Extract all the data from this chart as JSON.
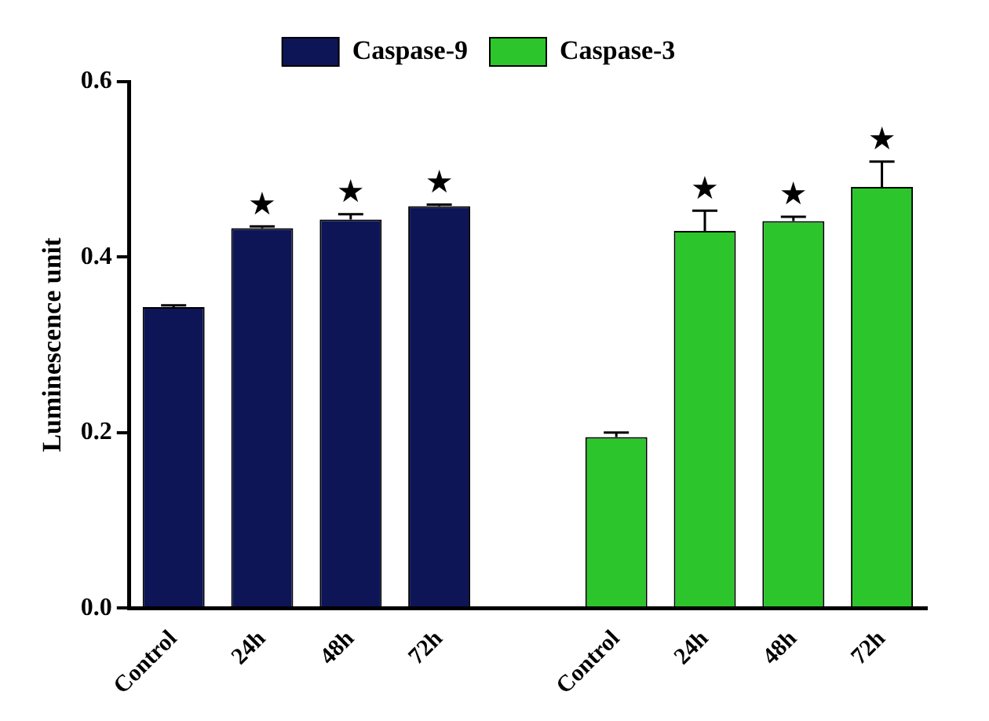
{
  "chart_data": {
    "type": "bar",
    "ylabel": "Luminescence unit",
    "categories": [
      "Control",
      "24h",
      "48h",
      "72h",
      null,
      "Control",
      "24h",
      "48h",
      "72h"
    ],
    "series": [
      {
        "name": "Caspase-9",
        "color": "#0d1557",
        "values": [
          0.343,
          0.433,
          0.443,
          0.458,
          null,
          null,
          null,
          null,
          null
        ],
        "errors": [
          0.002,
          0.002,
          0.006,
          0.002,
          null,
          null,
          null,
          null,
          null
        ],
        "value_labels": [
          null,
          "★",
          "★",
          "★",
          null,
          null,
          null,
          null,
          null
        ]
      },
      {
        "name": "Caspase-3",
        "color": "#2cc52c",
        "values": [
          null,
          null,
          null,
          null,
          null,
          0.195,
          0.43,
          0.441,
          0.48
        ],
        "errors": [
          null,
          null,
          null,
          null,
          null,
          0.005,
          0.023,
          0.005,
          0.029
        ],
        "value_labels": [
          null,
          null,
          null,
          null,
          null,
          null,
          "★",
          "★",
          "★"
        ]
      }
    ],
    "ylim": [
      0,
      0.6
    ],
    "yticks": [
      {
        "value": 0,
        "label": "0.0"
      },
      {
        "value": 0.2,
        "label": "0.2"
      },
      {
        "value": 0.4,
        "label": "0.4"
      },
      {
        "value": 0.6,
        "label": "0.6"
      }
    ],
    "grid": false,
    "legend": "top"
  }
}
